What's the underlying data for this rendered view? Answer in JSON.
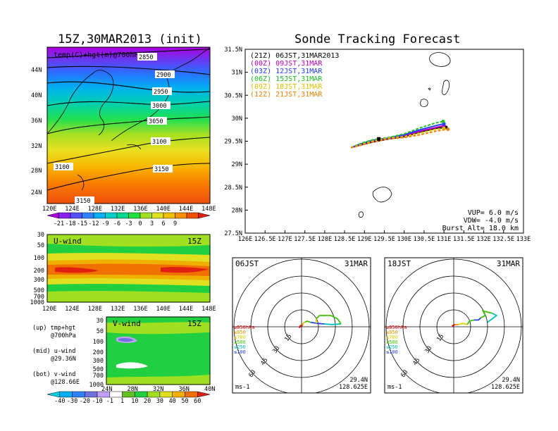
{
  "titles": {
    "left": "15Z,30MAR2013 (init)",
    "right": "Sonde Tracking Forecast"
  },
  "panel_labels": {
    "map": "temp(C)+hgt(m)@700hPa",
    "uwind": "U-wind",
    "uwind_time": "15Z",
    "vwind": "V-wind",
    "vwind_time": "15Z"
  },
  "side_notes": [
    {
      "a": "(up) tmp+hgt",
      "b": "@700hPa"
    },
    {
      "a": "(mid) u-wind",
      "b": "@29.36N"
    },
    {
      "a": "(bot) v-wind",
      "b": "@128.66E"
    }
  ],
  "colorbars": {
    "temp": {
      "labels": [
        "-21",
        "-18",
        "-15",
        "-12",
        "-9",
        "-6",
        "-3",
        "0",
        "3",
        "6",
        "9"
      ],
      "colors": [
        "#b000e0",
        "#8a20f0",
        "#5050ff",
        "#3080ff",
        "#00b0f0",
        "#00d0c8",
        "#00d890",
        "#20e040",
        "#a0e020",
        "#e0e020",
        "#f0c000",
        "#f89000",
        "#f05000",
        "#e02010"
      ]
    },
    "wind": {
      "labels": [
        "-40",
        "-30",
        "-20",
        "-10",
        "-1",
        "1",
        "10",
        "20",
        "30",
        "40",
        "50",
        "60"
      ],
      "colors": [
        "#00d0e0",
        "#00b0f0",
        "#3080ff",
        "#7070e0",
        "#c0a0ff",
        "#ffffff",
        "#60c020",
        "#20d040",
        "#a0e020",
        "#e0e020",
        "#f0b000",
        "#f07000",
        "#e02010"
      ]
    }
  },
  "left_axes": {
    "map_lat": [
      "44N",
      "40N",
      "36N",
      "32N",
      "28N",
      "24N"
    ],
    "map_lon": [
      "120E",
      "124E",
      "128E",
      "132E",
      "136E",
      "140E",
      "144E",
      "148E"
    ],
    "pressure": [
      "30",
      "50",
      "100",
      "200",
      "300",
      "500",
      "700",
      "1000"
    ],
    "vwind_lat": [
      "24N",
      "28N",
      "32N",
      "36N",
      "40N"
    ]
  },
  "contour_labels": [
    "2850",
    "2900",
    "2950",
    "3000",
    "3050",
    "3100",
    "3100",
    "3150",
    "3150"
  ],
  "track": {
    "lat_ticks": [
      "31.5N",
      "31N",
      "30.5N",
      "30N",
      "29.5N",
      "29N",
      "28.5N",
      "28N",
      "27.5N"
    ],
    "lon_ticks": [
      "126E",
      "126.5E",
      "127E",
      "127.5E",
      "128E",
      "128.5E",
      "129E",
      "129.5E",
      "130E",
      "130.5E",
      "131E",
      "131.5E",
      "132E",
      "132.5E",
      "133E"
    ],
    "legend": [
      {
        "text": "(21Z) 06JST,31MAR2013",
        "color": "#000000"
      },
      {
        "text": "(00Z) 09JST,31MAR",
        "color": "#c000c0"
      },
      {
        "text": "(03Z) 12JST,31MAR",
        "color": "#2040ff"
      },
      {
        "text": "(06Z) 15JST,31MAR",
        "color": "#20c020"
      },
      {
        "text": "(09Z) 18JST,31MAR",
        "color": "#e0c000"
      },
      {
        "text": "(12Z) 21JST,31MAR",
        "color": "#f08000"
      }
    ],
    "params": [
      "VUP= 6.0 m/s",
      "VDW= -4.0 m/s",
      "Burst Alt= 18.0 km"
    ]
  },
  "chart_data": [
    {
      "type": "line",
      "title": "Sonde Tracking Forecast",
      "xlim": [
        126,
        133
      ],
      "ylim": [
        27.5,
        31.5
      ],
      "launch": [
        129.36,
        29.55
      ],
      "series": [
        {
          "name": "(21Z) 06JST,31MAR2013",
          "x": [
            128.66,
            128.9,
            129.2,
            129.6,
            130.0,
            130.4,
            130.8,
            131.05
          ],
          "y": [
            29.36,
            29.42,
            29.48,
            29.55,
            29.6,
            29.7,
            29.78,
            29.8
          ]
        },
        {
          "name": "(00Z) 09JST,31MAR",
          "x": [
            128.66,
            128.9,
            129.2,
            129.6,
            130.0,
            130.4,
            130.8,
            131.0
          ],
          "y": [
            29.36,
            29.43,
            29.5,
            29.56,
            29.62,
            29.72,
            29.8,
            29.84
          ]
        },
        {
          "name": "(03Z) 12JST,31MAR",
          "x": [
            128.66,
            128.9,
            129.2,
            129.6,
            130.0,
            130.4,
            130.8,
            131.0
          ],
          "y": [
            29.36,
            29.44,
            29.52,
            29.57,
            29.64,
            29.75,
            29.84,
            29.88
          ]
        },
        {
          "name": "(06Z) 15JST,31MAR",
          "x": [
            128.66,
            128.9,
            129.2,
            129.6,
            130.0,
            130.4,
            130.8,
            130.98
          ],
          "y": [
            29.36,
            29.45,
            29.53,
            29.58,
            29.66,
            29.79,
            29.9,
            29.93
          ]
        },
        {
          "name": "(09Z) 18JST,31MAR",
          "x": [
            128.66,
            128.9,
            129.2,
            129.6,
            130.0,
            130.4,
            130.8,
            131.0
          ],
          "y": [
            29.36,
            29.42,
            29.5,
            29.57,
            29.6,
            29.68,
            29.76,
            29.78
          ]
        },
        {
          "name": "(12Z) 21JST,31MAR",
          "x": [
            128.66,
            128.9,
            129.2,
            129.6,
            130.0,
            130.4,
            130.8,
            131.1
          ],
          "y": [
            29.36,
            29.41,
            29.48,
            29.55,
            29.58,
            29.64,
            29.72,
            29.76
          ]
        }
      ]
    },
    {
      "type": "line",
      "subtitle": "06JST",
      "date": "31MAR",
      "location": [
        "29.4N",
        "128.625E"
      ],
      "unit": "ms-1",
      "ring_labels": [
        "15",
        "30",
        "45",
        "60"
      ],
      "legend": [
        {
          "text": "≥850hPa",
          "color": "#e00000"
        },
        {
          "text": "≤850",
          "color": "#f09000"
        },
        {
          "text": "≤700",
          "color": "#e0d000"
        },
        {
          "text": "≤500",
          "color": "#40c000"
        },
        {
          "text": "≤250",
          "color": "#00c0c0"
        },
        {
          "text": "≤100",
          "color": "#2040ff"
        }
      ],
      "segments": [
        {
          "color": "#e00000",
          "points": [
            [
              -2,
              -1
            ],
            [
              -1,
              1
            ],
            [
              1,
              1
            ]
          ]
        },
        {
          "color": "#f09000",
          "points": [
            [
              1,
              1
            ],
            [
              1,
              3
            ]
          ]
        },
        {
          "color": "#e0d000",
          "points": [
            [
              1,
              3
            ],
            [
              3,
              4
            ]
          ]
        },
        {
          "color": "#40c000",
          "points": [
            [
              3,
              4
            ],
            [
              5,
              5
            ],
            [
              8,
              4
            ]
          ]
        },
        {
          "color": "#2040ff",
          "points": [
            [
              8,
              4
            ],
            [
              14,
              3
            ],
            [
              20,
              2.5
            ]
          ]
        },
        {
          "color": "#00c0c0",
          "points": [
            [
              20,
              2.5
            ],
            [
              27,
              2
            ],
            [
              35,
              2.5
            ]
          ]
        },
        {
          "color": "#40c000",
          "points": [
            [
              35,
              2.5
            ],
            [
              32,
              7
            ],
            [
              26,
              10
            ],
            [
              16,
              10
            ],
            [
              13,
              7
            ]
          ]
        },
        {
          "color": "#e0d000",
          "points": [
            [
              13,
              7
            ],
            [
              13,
              3
            ]
          ]
        }
      ]
    },
    {
      "type": "line",
      "subtitle": "18JST",
      "date": "31MAR",
      "location": [
        "29.4N",
        "128.625E"
      ],
      "unit": "ms-1",
      "ring_labels": [
        "15",
        "30",
        "45",
        "60"
      ],
      "legend": [
        {
          "text": "≥850hPa",
          "color": "#e00000"
        },
        {
          "text": "≤850",
          "color": "#f09000"
        },
        {
          "text": "≤700",
          "color": "#e0d000"
        },
        {
          "text": "≤500",
          "color": "#40c000"
        },
        {
          "text": "≤250",
          "color": "#00c0c0"
        },
        {
          "text": "≤100",
          "color": "#2040ff"
        }
      ],
      "segments": [
        {
          "color": "#e00000",
          "points": [
            [
              0,
              0
            ],
            [
              -1,
              1
            ],
            [
              1,
              2
            ]
          ]
        },
        {
          "color": "#f09000",
          "points": [
            [
              1,
              2
            ],
            [
              4,
              2
            ]
          ]
        },
        {
          "color": "#e0d000",
          "points": [
            [
              4,
              2
            ],
            [
              8,
              3
            ],
            [
              12,
              2
            ]
          ]
        },
        {
          "color": "#40c000",
          "points": [
            [
              12,
              2
            ],
            [
              14,
              5
            ],
            [
              18,
              6
            ]
          ]
        },
        {
          "color": "#2040ff",
          "points": [
            [
              18,
              6
            ],
            [
              22,
              6
            ],
            [
              24,
              8
            ]
          ]
        },
        {
          "color": "#40c000",
          "points": [
            [
              24,
              8
            ],
            [
              28,
              10
            ],
            [
              26,
              14
            ],
            [
              34,
              12
            ]
          ]
        },
        {
          "color": "#00c0c0",
          "points": [
            [
              34,
              12
            ],
            [
              38,
              10
            ],
            [
              30,
              4
            ]
          ]
        }
      ]
    }
  ]
}
